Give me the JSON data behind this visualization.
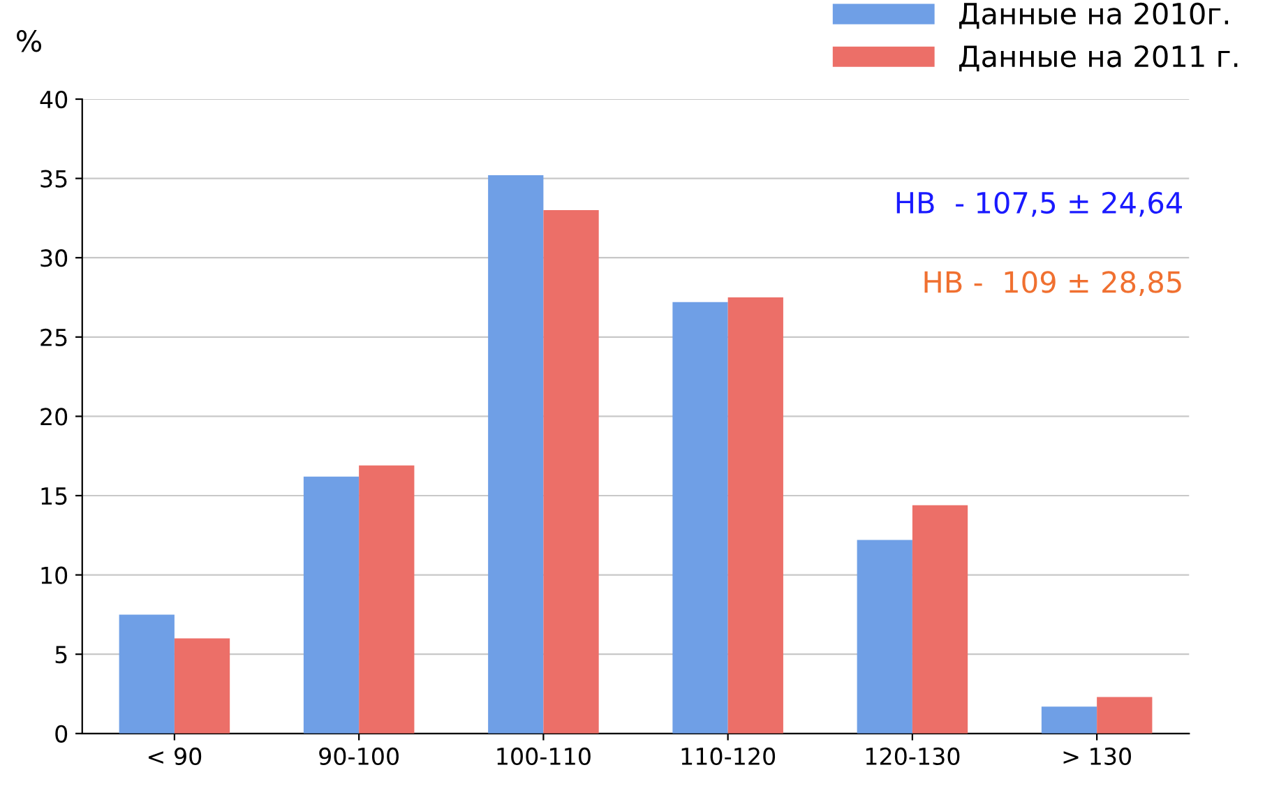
{
  "chart_data": {
    "type": "bar",
    "ylabel": "%",
    "categories": [
      "< 90",
      "90-100",
      "100-110",
      "110-120",
      "120-130",
      "> 130"
    ],
    "series": [
      {
        "name": "Данные на 2010г.",
        "color": "#6f9fe6",
        "values": [
          7.5,
          16.2,
          35.2,
          27.2,
          12.2,
          1.7
        ]
      },
      {
        "name": "Данные на 2011 г.",
        "color": "#ec6f68",
        "values": [
          6.0,
          16.9,
          33.0,
          27.5,
          14.4,
          2.3
        ]
      }
    ],
    "ylim": [
      0,
      40
    ],
    "yticks": [
      0,
      5,
      10,
      15,
      20,
      25,
      30,
      35,
      40
    ],
    "grid": "y",
    "legend": "top right",
    "annotations": [
      "НВ  - 107,5 ± 24,64",
      "НВ -  109 ± 28,85"
    ]
  }
}
